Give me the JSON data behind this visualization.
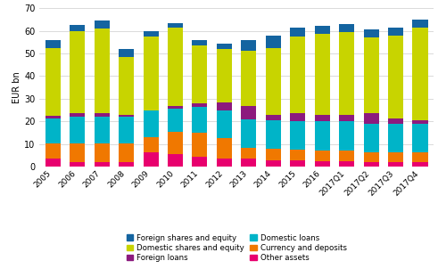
{
  "categories": [
    "2005",
    "2006",
    "2007",
    "2008",
    "2009",
    "2010",
    "2011",
    "2012",
    "2013",
    "2014",
    "2015",
    "2016",
    "2017Q1",
    "2017Q2",
    "2017Q3",
    "2017Q4"
  ],
  "other_assets": [
    3.5,
    2.0,
    2.0,
    2.0,
    6.5,
    5.5,
    4.5,
    3.5,
    3.5,
    3.0,
    3.0,
    2.5,
    2.5,
    2.0,
    2.0,
    2.0
  ],
  "currency_deposits": [
    7.0,
    8.5,
    8.5,
    8.5,
    6.5,
    10.0,
    10.5,
    9.0,
    5.0,
    5.0,
    4.5,
    4.5,
    4.5,
    4.5,
    4.5,
    4.5
  ],
  "domestic_loans": [
    11.0,
    11.5,
    11.5,
    11.5,
    12.0,
    10.0,
    11.5,
    12.5,
    12.5,
    12.5,
    12.5,
    13.0,
    13.0,
    12.5,
    12.5,
    12.5
  ],
  "foreign_loans": [
    1.0,
    1.5,
    1.5,
    1.0,
    0.0,
    1.5,
    1.5,
    3.5,
    6.0,
    2.5,
    3.5,
    3.0,
    3.0,
    4.5,
    2.5,
    1.5
  ],
  "domestic_shares": [
    30.0,
    36.5,
    37.5,
    25.5,
    32.5,
    34.5,
    25.5,
    23.5,
    24.0,
    29.5,
    34.0,
    35.5,
    36.5,
    33.5,
    36.5,
    41.0
  ],
  "foreign_shares_top": [
    3.5,
    2.5,
    3.5,
    3.5,
    2.5,
    2.0,
    2.5,
    2.5,
    5.0,
    5.5,
    4.0,
    3.5,
    3.5,
    3.5,
    3.5,
    3.5
  ],
  "colors": {
    "Other assets": "#e8006e",
    "Currency and deposits": "#f07800",
    "Domestic loans": "#00b4c8",
    "Foreign loans": "#8c1a7e",
    "Domestic shares and equity": "#c8d400",
    "Foreign shares and equity": "#1464a0"
  },
  "ylabel": "EUR bn",
  "ylim": [
    0,
    70
  ],
  "yticks": [
    0,
    10,
    20,
    30,
    40,
    50,
    60,
    70
  ],
  "legend_col1": [
    {
      "label": "Foreign shares and equity",
      "color": "#1464a0"
    },
    {
      "label": "Foreign loans",
      "color": "#8c1a7e"
    },
    {
      "label": "Currency and deposits",
      "color": "#f07800"
    }
  ],
  "legend_col2": [
    {
      "label": "Domestic shares and equity",
      "color": "#c8d400"
    },
    {
      "label": "Domestic loans",
      "color": "#00b4c8"
    },
    {
      "label": "Other assets",
      "color": "#e8006e"
    }
  ]
}
